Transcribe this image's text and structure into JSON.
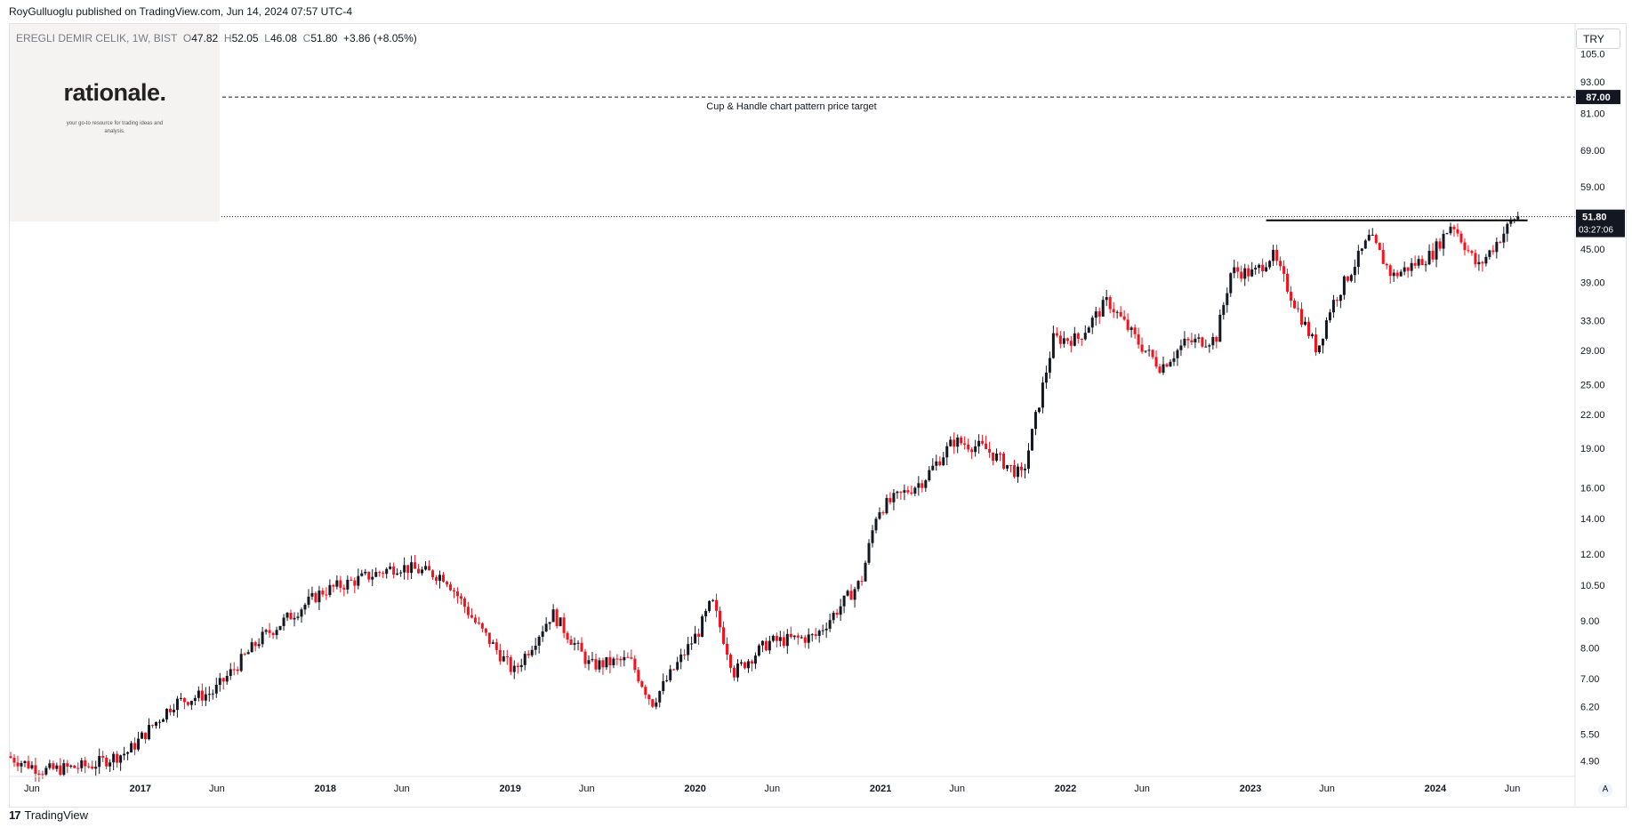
{
  "publisher": "RoyGulluoglu published on TradingView.com, Jun 14, 2024 07:57 UTC-4",
  "brand": {
    "logo": "17",
    "name": "TradingView"
  },
  "watermark": {
    "title": "rationale.",
    "subtitle": "your go-to resource for trading ideas and analysis."
  },
  "legend": {
    "symbol": "EREGLI DEMIR CELIK, 1W, BIST",
    "open_label": "O",
    "open": "47.82",
    "high_label": "H",
    "high": "52.05",
    "low_label": "L",
    "low": "46.08",
    "close_label": "C",
    "close": "51.80",
    "change": "+3.86 (+8.05%)"
  },
  "currency": "TRY",
  "auto_label": "A",
  "colors": {
    "up": "#131722",
    "down": "#f7101a",
    "axis_text": "#131722",
    "grid": "#f0f3fa",
    "price_tag": "#131722"
  },
  "chart_data": {
    "type": "candlestick",
    "y_scale": "log",
    "ylim": [
      4.6,
      118
    ],
    "y_ticks": [
      "105.0",
      "93.00",
      "81.00",
      "69.00",
      "59.00",
      "45.00",
      "39.00",
      "33.00",
      "29.00",
      "25.00",
      "22.00",
      "19.00",
      "16.00",
      "14.00",
      "12.00",
      "10.50",
      "9.00",
      "8.00",
      "7.00",
      "6.20",
      "5.50",
      "4.90"
    ],
    "x_ticks": [
      "Jun",
      "2017",
      "Jun",
      "2018",
      "Jun",
      "2019",
      "Jun",
      "2020",
      "Jun",
      "2021",
      "Jun",
      "2022",
      "Jun",
      "2023",
      "Jun",
      "2024",
      "Jun"
    ],
    "x_tick_dates": [
      "2016-06-01",
      "2017-01-01",
      "2017-06-01",
      "2018-01-01",
      "2018-06-01",
      "2019-01-01",
      "2019-06-01",
      "2020-01-01",
      "2020-06-01",
      "2021-01-01",
      "2021-06-01",
      "2022-01-01",
      "2022-06-01",
      "2023-01-01",
      "2023-06-01",
      "2024-01-01",
      "2024-06-01"
    ],
    "xlim": [
      "2016-04-20",
      "2024-10-01"
    ],
    "price_series": [
      {
        "date": "2016-04-20",
        "price": 5.0
      },
      {
        "date": "2016-07-01",
        "price": 4.7
      },
      {
        "date": "2016-10-01",
        "price": 4.8
      },
      {
        "date": "2016-12-15",
        "price": 5.1
      },
      {
        "date": "2017-03-15",
        "price": 6.3
      },
      {
        "date": "2017-06-01",
        "price": 6.6
      },
      {
        "date": "2017-09-01",
        "price": 8.3
      },
      {
        "date": "2018-01-01",
        "price": 10.2
      },
      {
        "date": "2018-06-01",
        "price": 11.4
      },
      {
        "date": "2018-09-01",
        "price": 10.9
      },
      {
        "date": "2018-11-01",
        "price": 8.9
      },
      {
        "date": "2019-01-15",
        "price": 7.2
      },
      {
        "date": "2019-04-01",
        "price": 9.3
      },
      {
        "date": "2019-06-15",
        "price": 7.4
      },
      {
        "date": "2019-09-01",
        "price": 7.6
      },
      {
        "date": "2019-10-15",
        "price": 6.3
      },
      {
        "date": "2020-01-15",
        "price": 8.6
      },
      {
        "date": "2020-02-10",
        "price": 9.8
      },
      {
        "date": "2020-03-25",
        "price": 7.2
      },
      {
        "date": "2020-06-01",
        "price": 8.2
      },
      {
        "date": "2020-09-01",
        "price": 8.4
      },
      {
        "date": "2020-12-01",
        "price": 10.7
      },
      {
        "date": "2021-01-01",
        "price": 14.5
      },
      {
        "date": "2021-04-01",
        "price": 16.5
      },
      {
        "date": "2021-06-01",
        "price": 19.6
      },
      {
        "date": "2021-08-01",
        "price": 19.0
      },
      {
        "date": "2021-10-15",
        "price": 16.8
      },
      {
        "date": "2021-12-15",
        "price": 30.5
      },
      {
        "date": "2022-02-01",
        "price": 30.5
      },
      {
        "date": "2022-04-01",
        "price": 36.0
      },
      {
        "date": "2022-06-01",
        "price": 30.0
      },
      {
        "date": "2022-07-15",
        "price": 27.0
      },
      {
        "date": "2022-09-01",
        "price": 30.0
      },
      {
        "date": "2022-11-01",
        "price": 30.5
      },
      {
        "date": "2022-12-01",
        "price": 41.0
      },
      {
        "date": "2023-01-15",
        "price": 40.5
      },
      {
        "date": "2023-02-20",
        "price": 44.0
      },
      {
        "date": "2023-04-15",
        "price": 34.0
      },
      {
        "date": "2023-05-20",
        "price": 29.0
      },
      {
        "date": "2023-06-15",
        "price": 35.0
      },
      {
        "date": "2023-09-01",
        "price": 47.5
      },
      {
        "date": "2023-10-15",
        "price": 40.0
      },
      {
        "date": "2024-01-01",
        "price": 44.0
      },
      {
        "date": "2024-02-10",
        "price": 50.5
      },
      {
        "date": "2024-04-01",
        "price": 41.5
      },
      {
        "date": "2024-06-14",
        "price": 51.8
      }
    ],
    "annotations": {
      "target_label": "Cup & Handle chart pattern price target",
      "target_price": "87.00",
      "current_price": "51.80",
      "countdown": "03:27:06",
      "resistance_price": 51.0,
      "resistance_start": "2023-02-01",
      "resistance_end": "2024-07-01"
    },
    "legend_position": "top-left",
    "grid": false
  }
}
